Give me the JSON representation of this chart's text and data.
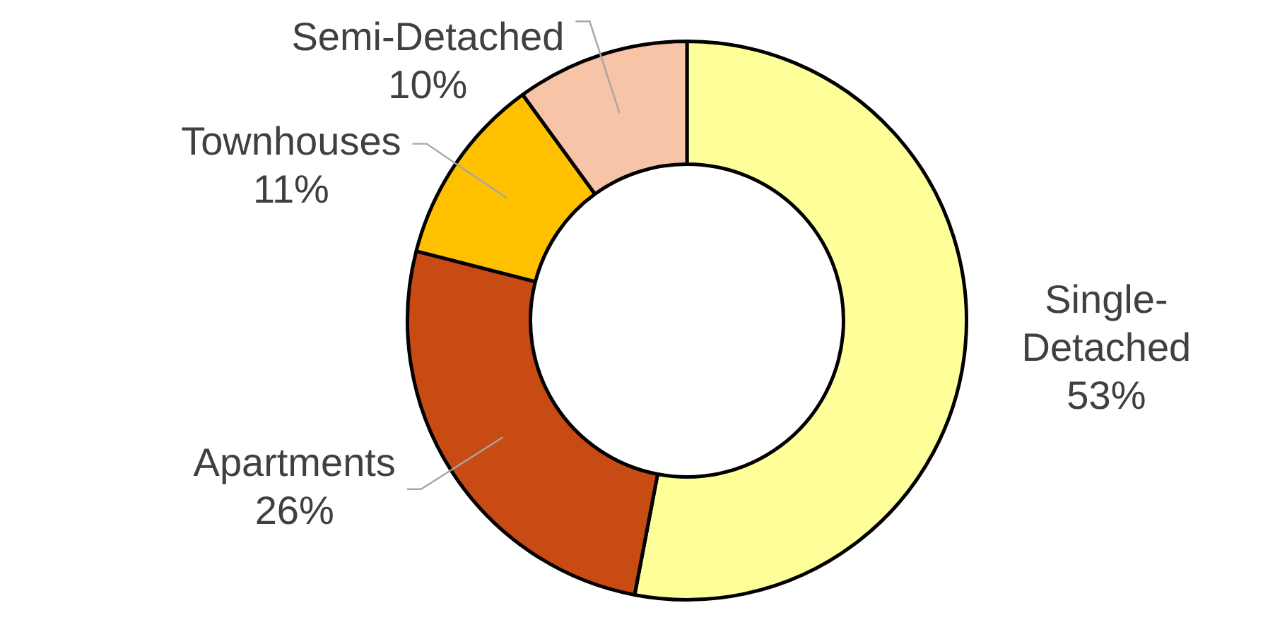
{
  "chart_data": {
    "type": "donut",
    "categories": [
      "Single-Detached",
      "Apartments",
      "Townhouses",
      "Semi-Detached"
    ],
    "values": [
      53,
      26,
      11,
      10
    ],
    "colors": [
      "#ffff99",
      "#c84b14",
      "#ffc000",
      "#f8c4a8"
    ],
    "value_labels": [
      "53%",
      "26%",
      "11%",
      "10%"
    ],
    "legend": false
  }
}
